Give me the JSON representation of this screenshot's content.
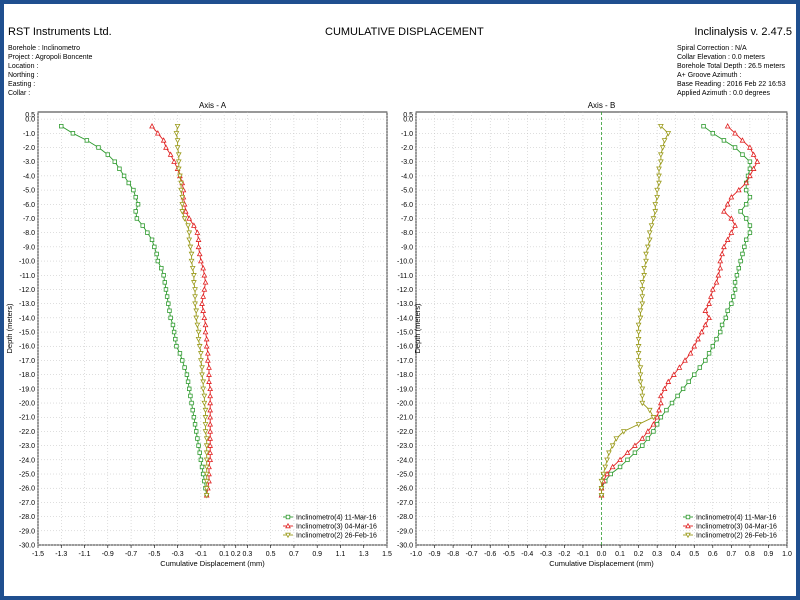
{
  "header": {
    "company": "RST Instruments Ltd.",
    "title": "CUMULATIVE DISPLACEMENT",
    "app": "Inclinalysis v. 2.47.5"
  },
  "meta_left": [
    "Borehole : Inclinometro",
    "Project : Agropoli Boncente",
    "Location :",
    "Northing :",
    "Easting :",
    "Collar :"
  ],
  "meta_right": [
    "Spiral Correction : N/A",
    "Collar Elevation : 0.0 meters",
    "Borehole Total Depth : 26.5 meters",
    "A+ Groove Azimuth :",
    "Base Reading : 2016 Feb 22 16:53",
    "Applied Azimuth : 0.0 degrees"
  ],
  "colors": {
    "frame": "#1f4f8f",
    "green": "#2e9a2e",
    "red": "#e02020",
    "olive": "#9a9a1a",
    "grid": "#bdbdbd",
    "zero": "#2e9a2e"
  },
  "chart_data": [
    {
      "type": "line",
      "title": "Axis - A",
      "xlabel": "Cumulative Displacement (mm)",
      "ylabel": "Depth (meters)",
      "xlim": [
        -1.5,
        1.5
      ],
      "ylim": [
        0.5,
        -30.0
      ],
      "xticks": [
        "-1.5",
        "-1.3",
        "-1.1",
        "-0.9",
        "-0.7",
        "-0.5",
        "-0.3",
        "-0.1",
        "0.1",
        "0.2",
        "0.3",
        "0.5",
        "0.7",
        "0.9",
        "1.1",
        "1.3",
        "1.5"
      ],
      "legend_position": "bottom-right",
      "depths": [
        -0.5,
        -1.0,
        -1.5,
        -2.0,
        -2.5,
        -3.0,
        -3.5,
        -4.0,
        -4.5,
        -5.0,
        -5.5,
        -6.0,
        -6.5,
        -7.0,
        -7.5,
        -8.0,
        -8.5,
        -9.0,
        -9.5,
        -10.0,
        -10.5,
        -11.0,
        -11.5,
        -12.0,
        -12.5,
        -13.0,
        -13.5,
        -14.0,
        -14.5,
        -15.0,
        -15.5,
        -16.0,
        -16.5,
        -17.0,
        -17.5,
        -18.0,
        -18.5,
        -19.0,
        -19.5,
        -20.0,
        -20.5,
        -21.0,
        -21.5,
        -22.0,
        -22.5,
        -23.0,
        -23.5,
        -24.0,
        -24.5,
        -25.0,
        -25.5,
        -26.0,
        -26.5
      ],
      "series": [
        {
          "name": "Inclinometro(4) 11-Mar-16",
          "color": "#2e9a2e",
          "marker": "square",
          "values": [
            -1.3,
            -1.2,
            -1.08,
            -0.98,
            -0.9,
            -0.84,
            -0.8,
            -0.76,
            -0.72,
            -0.68,
            -0.66,
            -0.64,
            -0.66,
            -0.65,
            -0.6,
            -0.56,
            -0.52,
            -0.5,
            -0.48,
            -0.47,
            -0.44,
            -0.42,
            -0.41,
            -0.4,
            -0.39,
            -0.38,
            -0.37,
            -0.36,
            -0.34,
            -0.33,
            -0.32,
            -0.31,
            -0.28,
            -0.26,
            -0.24,
            -0.22,
            -0.21,
            -0.2,
            -0.19,
            -0.18,
            -0.17,
            -0.16,
            -0.15,
            -0.14,
            -0.13,
            -0.12,
            -0.11,
            -0.1,
            -0.09,
            -0.08,
            -0.07,
            -0.06,
            -0.05
          ]
        },
        {
          "name": "Inclinometro(3) 04-Mar-16",
          "color": "#e02020",
          "marker": "triangle",
          "values": [
            -0.52,
            -0.47,
            -0.42,
            -0.4,
            -0.36,
            -0.33,
            -0.3,
            -0.28,
            -0.26,
            -0.25,
            -0.25,
            -0.24,
            -0.23,
            -0.2,
            -0.16,
            -0.13,
            -0.12,
            -0.12,
            -0.11,
            -0.1,
            -0.08,
            -0.07,
            -0.06,
            -0.07,
            -0.08,
            -0.09,
            -0.08,
            -0.07,
            -0.06,
            -0.06,
            -0.05,
            -0.05,
            -0.04,
            -0.04,
            -0.03,
            -0.03,
            -0.03,
            -0.02,
            -0.02,
            -0.02,
            -0.02,
            -0.02,
            -0.02,
            -0.02,
            -0.02,
            -0.02,
            -0.02,
            -0.02,
            -0.03,
            -0.03,
            -0.03,
            -0.04,
            -0.05
          ]
        },
        {
          "name": "Inclinometro(2) 26-Feb-16",
          "color": "#9a9a1a",
          "marker": "inverted-triangle",
          "values": [
            -0.3,
            -0.31,
            -0.3,
            -0.3,
            -0.29,
            -0.29,
            -0.29,
            -0.28,
            -0.27,
            -0.27,
            -0.26,
            -0.26,
            -0.26,
            -0.24,
            -0.21,
            -0.2,
            -0.2,
            -0.19,
            -0.18,
            -0.18,
            -0.17,
            -0.16,
            -0.16,
            -0.15,
            -0.15,
            -0.15,
            -0.14,
            -0.14,
            -0.13,
            -0.12,
            -0.12,
            -0.11,
            -0.1,
            -0.1,
            -0.09,
            -0.09,
            -0.08,
            -0.08,
            -0.07,
            -0.07,
            -0.06,
            -0.06,
            -0.06,
            -0.06,
            -0.05,
            -0.05,
            -0.05,
            -0.05,
            -0.05,
            -0.05,
            -0.05,
            -0.05,
            -0.05
          ]
        }
      ]
    },
    {
      "type": "line",
      "title": "Axis - B",
      "xlabel": "Cumulative Displacement (mm)",
      "ylabel": "Depth (meters)",
      "xlim": [
        -1.0,
        1.0
      ],
      "ylim": [
        0.5,
        -30.0
      ],
      "xticks": [
        "-1.0",
        "-0.9",
        "-0.8",
        "-0.7",
        "-0.6",
        "-0.5",
        "-0.4",
        "-0.3",
        "-0.2",
        "-0.1",
        "0.0",
        "0.1",
        "0.2",
        "0.3",
        "0.4",
        "0.5",
        "0.6",
        "0.7",
        "0.8",
        "0.9",
        "1.0"
      ],
      "legend_position": "bottom-right",
      "depths": [
        -0.5,
        -1.0,
        -1.5,
        -2.0,
        -2.5,
        -3.0,
        -3.5,
        -4.0,
        -4.5,
        -5.0,
        -5.5,
        -6.0,
        -6.5,
        -7.0,
        -7.5,
        -8.0,
        -8.5,
        -9.0,
        -9.5,
        -10.0,
        -10.5,
        -11.0,
        -11.5,
        -12.0,
        -12.5,
        -13.0,
        -13.5,
        -14.0,
        -14.5,
        -15.0,
        -15.5,
        -16.0,
        -16.5,
        -17.0,
        -17.5,
        -18.0,
        -18.5,
        -19.0,
        -19.5,
        -20.0,
        -20.5,
        -21.0,
        -21.5,
        -22.0,
        -22.5,
        -23.0,
        -23.5,
        -24.0,
        -24.5,
        -25.0,
        -25.5,
        -26.0,
        -26.5
      ],
      "series": [
        {
          "name": "Inclinometro(4) 11-Mar-16",
          "color": "#2e9a2e",
          "marker": "square",
          "values": [
            0.55,
            0.6,
            0.66,
            0.72,
            0.76,
            0.8,
            0.8,
            0.79,
            0.78,
            0.78,
            0.8,
            0.78,
            0.75,
            0.78,
            0.8,
            0.8,
            0.78,
            0.77,
            0.76,
            0.75,
            0.74,
            0.73,
            0.72,
            0.72,
            0.71,
            0.7,
            0.68,
            0.67,
            0.65,
            0.64,
            0.62,
            0.6,
            0.58,
            0.56,
            0.53,
            0.5,
            0.47,
            0.44,
            0.41,
            0.38,
            0.35,
            0.32,
            0.3,
            0.28,
            0.25,
            0.22,
            0.18,
            0.14,
            0.1,
            0.05,
            0.02,
            0.0,
            0.0
          ]
        },
        {
          "name": "Inclinometro(3) 04-Mar-16",
          "color": "#e02020",
          "marker": "triangle",
          "values": [
            0.68,
            0.72,
            0.76,
            0.8,
            0.82,
            0.84,
            0.82,
            0.8,
            0.78,
            0.74,
            0.7,
            0.68,
            0.66,
            0.7,
            0.72,
            0.7,
            0.68,
            0.66,
            0.65,
            0.64,
            0.64,
            0.63,
            0.62,
            0.6,
            0.59,
            0.58,
            0.56,
            0.58,
            0.56,
            0.54,
            0.52,
            0.5,
            0.48,
            0.45,
            0.42,
            0.39,
            0.36,
            0.34,
            0.32,
            0.32,
            0.31,
            0.3,
            0.28,
            0.25,
            0.22,
            0.18,
            0.14,
            0.1,
            0.06,
            0.03,
            0.01,
            0.0,
            0.0
          ]
        },
        {
          "name": "Inclinometro(2) 26-Feb-16",
          "color": "#9a9a1a",
          "marker": "inverted-triangle",
          "values": [
            0.32,
            0.36,
            0.34,
            0.33,
            0.32,
            0.32,
            0.31,
            0.31,
            0.31,
            0.3,
            0.3,
            0.29,
            0.29,
            0.28,
            0.27,
            0.26,
            0.26,
            0.25,
            0.24,
            0.24,
            0.23,
            0.23,
            0.22,
            0.22,
            0.22,
            0.22,
            0.21,
            0.21,
            0.2,
            0.2,
            0.2,
            0.2,
            0.2,
            0.2,
            0.21,
            0.21,
            0.21,
            0.22,
            0.22,
            0.22,
            0.26,
            0.28,
            0.2,
            0.12,
            0.08,
            0.06,
            0.04,
            0.03,
            0.02,
            0.01,
            0.0,
            0.0,
            0.0
          ]
        }
      ]
    }
  ]
}
